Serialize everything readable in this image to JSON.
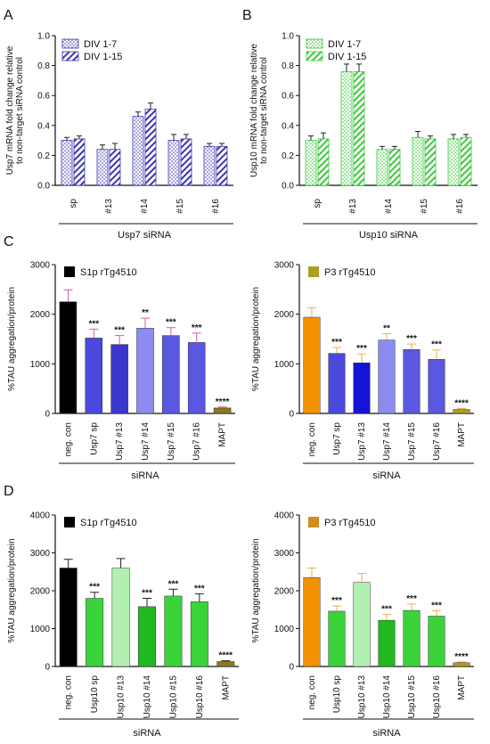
{
  "panel_labels": [
    "A",
    "B",
    "C",
    "D"
  ],
  "colors": {
    "usp7_stripe": "#3b35b0",
    "usp10_stripe": "#3cc83c",
    "axis": "#111111",
    "error_bar_default": "#222222"
  },
  "chart_data": [
    {
      "id": "A",
      "type": "bar",
      "bar_style": "grouped-patterned",
      "ylabel": "Usp7 mRNA fold change relative to non-target siRNA control",
      "ylabel_lines": [
        "Usp7 mRNA fold change relative",
        "to non-target siRNA control"
      ],
      "xlabel": "Usp7 siRNA",
      "ylim": [
        0,
        1.0
      ],
      "yticks": [
        "0.0",
        "0.2",
        "0.4",
        "0.6",
        "0.8",
        "1.0"
      ],
      "categories": [
        "sp",
        "#13",
        "#14",
        "#15",
        "#16"
      ],
      "legend": {
        "placement": "top-left",
        "entries": [
          "DIV 1-7",
          "DIV 1-15"
        ]
      },
      "series": [
        {
          "name": "DIV 1-7",
          "pattern": "dots",
          "color": "#3b35b0",
          "values": [
            0.3,
            0.24,
            0.46,
            0.3,
            0.26
          ],
          "errors": [
            0.02,
            0.03,
            0.03,
            0.04,
            0.02
          ]
        },
        {
          "name": "DIV 1-15",
          "pattern": "stripes",
          "color": "#3b35b0",
          "values": [
            0.31,
            0.24,
            0.51,
            0.31,
            0.26
          ],
          "errors": [
            0.02,
            0.04,
            0.04,
            0.03,
            0.02
          ]
        }
      ],
      "annotations": []
    },
    {
      "id": "B",
      "type": "bar",
      "bar_style": "grouped-patterned",
      "ylabel": "Usp10 mRNA fold change relative to non-target siRNA control",
      "ylabel_lines": [
        "Usp10 mRNA fold change relative",
        "to non-target siRNA control"
      ],
      "xlabel": "Usp10 siRNA",
      "ylim": [
        0,
        1.0
      ],
      "yticks": [
        "0.0",
        "0.2",
        "0.4",
        "0.6",
        "0.8",
        "1.0"
      ],
      "categories": [
        "sp",
        "#13",
        "#14",
        "#15",
        "#16"
      ],
      "legend": {
        "placement": "top-left",
        "entries": [
          "DIV 1-7",
          "DIV 1-15"
        ]
      },
      "series": [
        {
          "name": "DIV 1-7",
          "pattern": "dots",
          "color": "#3cc83c",
          "values": [
            0.3,
            0.76,
            0.24,
            0.32,
            0.31
          ],
          "errors": [
            0.03,
            0.05,
            0.02,
            0.04,
            0.03
          ]
        },
        {
          "name": "DIV 1-15",
          "pattern": "stripes",
          "color": "#3cc83c",
          "values": [
            0.31,
            0.76,
            0.24,
            0.31,
            0.32
          ],
          "errors": [
            0.04,
            0.05,
            0.02,
            0.02,
            0.02
          ]
        }
      ],
      "annotations": []
    },
    {
      "id": "C-left",
      "type": "bar",
      "ylabel": "%TAU aggregation/protein",
      "xlabel": "siRNA",
      "ylim": [
        0,
        3000
      ],
      "yticks": [
        "0",
        "1000",
        "2000",
        "3000"
      ],
      "categories": [
        "neg. con",
        "Usp7 sp",
        "Usp7 #13",
        "Usp7 #14",
        "Usp7 #15",
        "Usp7 #16",
        "MAPT"
      ],
      "values": [
        2250,
        1520,
        1390,
        1720,
        1570,
        1430,
        110
      ],
      "errors": [
        240,
        180,
        180,
        200,
        160,
        190,
        20
      ],
      "bar_colors": [
        "#000000",
        "#4b48de",
        "#3a38cc",
        "#8c8cf0",
        "#5a57e0",
        "#5a57e0",
        "#8a7a1c"
      ],
      "error_colors": [
        "#d05ab8",
        "#d05ab8",
        "#d05ab8",
        "#d05ab8",
        "#d05ab8",
        "#d05ab8",
        "#d05ab8"
      ],
      "annotations": [
        "",
        "***",
        "***",
        "**",
        "***",
        "***",
        "****"
      ],
      "legend": {
        "placement": "top-left",
        "entries": [
          "S1p rTg4510"
        ],
        "swatch": "#000000"
      }
    },
    {
      "id": "C-right",
      "type": "bar",
      "ylabel": "%TAU aggregation/protein",
      "xlabel": "siRNA",
      "ylim": [
        0,
        3000
      ],
      "yticks": [
        "0",
        "1000",
        "2000",
        "3000"
      ],
      "categories": [
        "neg. con",
        "Usp7 sp",
        "Usp7 #13",
        "Usp7 #14",
        "Usp7 #15",
        "Usp7 #16",
        "MAPT"
      ],
      "values": [
        1940,
        1210,
        1020,
        1480,
        1290,
        1090,
        80
      ],
      "errors": [
        190,
        120,
        180,
        130,
        110,
        190,
        20
      ],
      "bar_colors": [
        "#f39200",
        "#4b48de",
        "#1414d8",
        "#8c8cf0",
        "#5a57e0",
        "#5a57e0",
        "#a8a020"
      ],
      "error_colors": [
        "#e8b24a",
        "#e8b24a",
        "#e8b24a",
        "#e8b24a",
        "#e8b24a",
        "#e8b24a",
        "#e8b24a"
      ],
      "annotations": [
        "",
        "***",
        "***",
        "**",
        "***",
        "***",
        "****"
      ],
      "legend": {
        "placement": "top-left",
        "entries": [
          "P3 rTg4510"
        ],
        "swatch": "#a8a020"
      }
    },
    {
      "id": "D-left",
      "type": "bar",
      "ylabel": "%TAU aggregation/protein",
      "xlabel": "siRNA",
      "ylim": [
        0,
        4000
      ],
      "yticks": [
        "0",
        "1000",
        "2000",
        "3000",
        "4000"
      ],
      "categories": [
        "neg. con",
        "Usp10 sp",
        "Usp10 #13",
        "Usp10 #14",
        "Usp10 #15",
        "Usp10 #16",
        "MAPT"
      ],
      "values": [
        2600,
        1800,
        2600,
        1580,
        1860,
        1710,
        130
      ],
      "errors": [
        230,
        160,
        250,
        220,
        180,
        210,
        20
      ],
      "bar_colors": [
        "#000000",
        "#3ad43a",
        "#b2f0b2",
        "#22b822",
        "#3ad43a",
        "#3ad43a",
        "#8a7a1c"
      ],
      "error_colors": [
        "#222222",
        "#222222",
        "#222222",
        "#222222",
        "#222222",
        "#222222",
        "#222222"
      ],
      "annotations": [
        "",
        "***",
        "",
        "***",
        "***",
        "***",
        "****"
      ],
      "legend": {
        "placement": "top-left",
        "entries": [
          "S1p rTg4510"
        ],
        "swatch": "#000000"
      }
    },
    {
      "id": "D-right",
      "type": "bar",
      "ylabel": "%TAU aggregation/protein",
      "xlabel": "siRNA",
      "ylim": [
        0,
        4000
      ],
      "yticks": [
        "0",
        "1000",
        "2000",
        "3000",
        "4000"
      ],
      "categories": [
        "neg. con",
        "Usp10 sp",
        "Usp10 #13",
        "Usp10 #14",
        "Usp10 #15",
        "Usp10 #16",
        "MAPT"
      ],
      "values": [
        2350,
        1460,
        2220,
        1220,
        1480,
        1330,
        100
      ],
      "errors": [
        250,
        140,
        240,
        160,
        170,
        140,
        20
      ],
      "bar_colors": [
        "#f39200",
        "#3ad43a",
        "#b2f0b2",
        "#22b822",
        "#3ad43a",
        "#3ad43a",
        "#b8941e"
      ],
      "error_colors": [
        "#e8b24a",
        "#e8b24a",
        "#e8b24a",
        "#e8b24a",
        "#e8b24a",
        "#e8b24a",
        "#e8b24a"
      ],
      "annotations": [
        "",
        "***",
        "",
        "***",
        "***",
        "***",
        "****"
      ],
      "legend": {
        "placement": "top-left",
        "entries": [
          "P3 rTg4510"
        ],
        "swatch": "#d08e1a"
      }
    }
  ]
}
